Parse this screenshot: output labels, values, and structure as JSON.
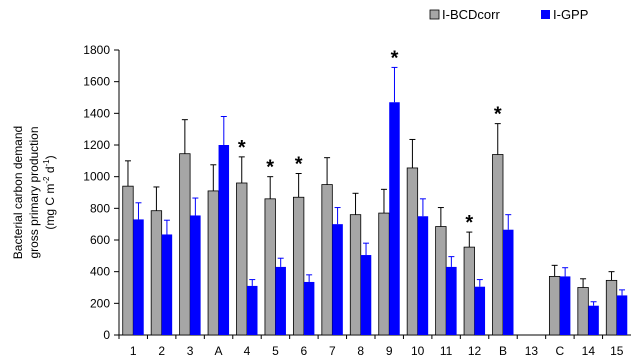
{
  "chart_data": {
    "type": "bar",
    "ylabel_lines": [
      "Bacterial carbon demand",
      "gross primary production",
      "(mg C m",
      "-2",
      " d",
      "-1",
      ")"
    ],
    "ylim": [
      0,
      1800
    ],
    "yticks": [
      0,
      200,
      400,
      600,
      800,
      1000,
      1200,
      1400,
      1600,
      1800
    ],
    "grid": false,
    "legend_position": "top-right",
    "categories": [
      "1",
      "2",
      "3",
      "A",
      "4",
      "5",
      "6",
      "7",
      "8",
      "9",
      "10",
      "11",
      "12",
      "B",
      "13",
      "C",
      "14",
      "15"
    ],
    "series": [
      {
        "name": "I-BCDcorr",
        "color": "#a6a6a6",
        "values": [
          940,
          785,
          1145,
          910,
          960,
          860,
          870,
          950,
          760,
          770,
          1055,
          685,
          555,
          1140,
          null,
          370,
          300,
          345
        ],
        "errors": [
          160,
          150,
          215,
          165,
          165,
          140,
          150,
          170,
          135,
          150,
          180,
          120,
          95,
          195,
          null,
          70,
          55,
          55
        ]
      },
      {
        "name": "I-GPP",
        "color": "#0000ff",
        "values": [
          730,
          635,
          755,
          1200,
          310,
          430,
          335,
          700,
          505,
          1470,
          750,
          430,
          305,
          665,
          null,
          370,
          185,
          250
        ],
        "errors": [
          105,
          90,
          110,
          180,
          40,
          55,
          45,
          105,
          75,
          220,
          110,
          65,
          45,
          95,
          null,
          55,
          25,
          35
        ]
      }
    ],
    "significance_marker": "*",
    "significant_categories": [
      "4",
      "5",
      "6",
      "9",
      "12",
      "B"
    ]
  }
}
